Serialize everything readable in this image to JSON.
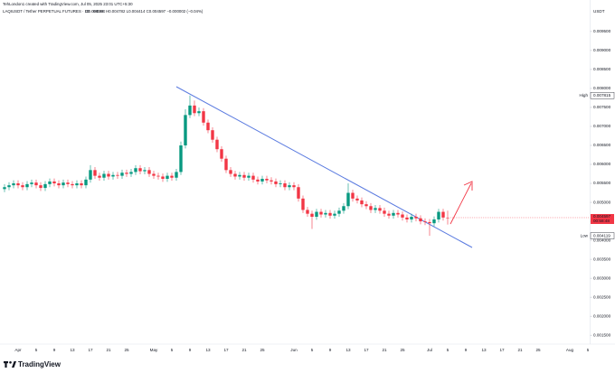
{
  "header": {
    "author_line": "TehLondon1 created with TradingView.com, Jul 05, 2025 23:01 UTC+5:30",
    "symbol_line": "LAQIUSDT / Tether PERPETUAL FUTURES · 1D · MEXC",
    "legend_ohlc": "O0.004598 H0.004782 L0.004414 C0.004597 −0.000002 (−0.04%)",
    "brand": "TradingView"
  },
  "chart_data": {
    "type": "candlestick",
    "y_axis_label": "USDT",
    "high_label": "High",
    "low_label": "Low",
    "countdown": "00:58:48",
    "up_color": "#089981",
    "down_color": "#f23645",
    "grid": false,
    "ylim": [
      0.00129,
      0.01033
    ],
    "yticks": [
      {
        "value": 0.0015,
        "label": "0.001500"
      },
      {
        "value": 0.002,
        "label": "0.002000"
      },
      {
        "value": 0.0025,
        "label": "0.002500"
      },
      {
        "value": 0.003,
        "label": "0.003000"
      },
      {
        "value": 0.0035,
        "label": "0.003500"
      },
      {
        "value": 0.004,
        "label": "0.004000"
      },
      {
        "value": 0.0045,
        "label": "0.004500"
      },
      {
        "value": 0.005,
        "label": "0.005000"
      },
      {
        "value": 0.0055,
        "label": "0.005500"
      },
      {
        "value": 0.006,
        "label": "0.006000"
      },
      {
        "value": 0.0065,
        "label": "0.006500"
      },
      {
        "value": 0.007,
        "label": "0.007000"
      },
      {
        "value": 0.0075,
        "label": "0.007500"
      },
      {
        "value": 0.008,
        "label": "0.008000"
      },
      {
        "value": 0.0085,
        "label": "0.008500"
      },
      {
        "value": 0.009,
        "label": "0.009000"
      },
      {
        "value": 0.0095,
        "label": "0.009500"
      }
    ],
    "categories": [
      null,
      null,
      null,
      "Apr",
      null,
      null,
      null,
      "5",
      null,
      null,
      null,
      "9",
      null,
      null,
      null,
      "13",
      null,
      null,
      null,
      "17",
      null,
      null,
      null,
      "21",
      null,
      null,
      null,
      "25",
      null,
      null,
      null,
      null,
      null,
      "May",
      null,
      null,
      null,
      "5",
      null,
      null,
      null,
      "9",
      null,
      null,
      null,
      "13",
      null,
      null,
      null,
      "17",
      null,
      null,
      null,
      "21",
      null,
      null,
      null,
      "25",
      null,
      null,
      null,
      null,
      null,
      null,
      "Jun",
      null,
      null,
      null,
      "5",
      null,
      null,
      null,
      "9",
      null,
      null,
      null,
      "13",
      null,
      null,
      null,
      "17",
      null,
      null,
      null,
      "21",
      null,
      null,
      null,
      "25",
      null,
      null,
      null,
      null,
      null,
      "Jul",
      null,
      null,
      null,
      "5",
      null,
      null,
      null,
      "9",
      null,
      null,
      null,
      "13",
      null,
      null,
      null,
      "17",
      null,
      null,
      null,
      "21",
      null,
      null,
      null,
      "25",
      null,
      null,
      null,
      null,
      null,
      null,
      "Aug",
      null,
      null,
      null,
      "5"
    ],
    "open": [
      0.00535,
      0.0054,
      0.00545,
      0.0055,
      0.00545,
      0.0054,
      0.00548,
      0.00552,
      0.00545,
      0.00538,
      0.00548,
      0.00555,
      0.0055,
      0.00545,
      0.00552,
      0.00548,
      0.00545,
      0.0055,
      0.00545,
      0.0056,
      0.00585,
      0.0057,
      0.00565,
      0.00575,
      0.00568,
      0.00572,
      0.0057,
      0.00578,
      0.00575,
      0.0058,
      0.0059,
      0.00582,
      0.00585,
      0.00575,
      0.0057,
      0.00568,
      0.00562,
      0.0057,
      0.00565,
      0.0058,
      0.0065,
      0.0073,
      0.00755,
      0.00735,
      0.0074,
      0.0071,
      0.0069,
      0.00665,
      0.0064,
      0.00615,
      0.00585,
      0.00575,
      0.00568,
      0.00572,
      0.00565,
      0.0057,
      0.0056,
      0.00555,
      0.00562,
      0.00558,
      0.00555,
      0.00548,
      0.0055,
      0.0054,
      0.00545,
      0.0054,
      0.0051,
      0.0048,
      0.0047,
      0.00462,
      0.00475,
      0.00468,
      0.00472,
      0.00465,
      0.0047,
      0.00478,
      0.0049,
      0.00525,
      0.0051,
      0.00505,
      0.00495,
      0.0049,
      0.0048,
      0.00485,
      0.00478,
      0.0047,
      0.00465,
      0.00472,
      0.00468,
      0.0046,
      0.00455,
      0.00462,
      0.00458,
      0.0045,
      0.00448,
      0.00445,
      0.00455,
      0.00475,
      0.004598,
      null,
      null,
      null,
      null,
      null,
      null,
      null,
      null,
      null,
      null,
      null,
      null,
      null,
      null,
      null,
      null,
      null,
      null,
      null,
      null,
      null,
      null,
      null,
      null,
      null,
      null,
      null,
      null,
      null,
      null,
      null
    ],
    "high": [
      0.00548,
      0.00553,
      0.00558,
      0.00558,
      0.00553,
      0.00556,
      0.0056,
      0.0056,
      0.00553,
      0.00556,
      0.00563,
      0.00563,
      0.00558,
      0.0056,
      0.0056,
      0.00556,
      0.00558,
      0.00558,
      0.00568,
      0.00598,
      0.00593,
      0.00578,
      0.00583,
      0.00583,
      0.0058,
      0.0058,
      0.00586,
      0.00586,
      0.00588,
      0.00598,
      0.00598,
      0.00593,
      0.00593,
      0.00583,
      0.00578,
      0.00576,
      0.00578,
      0.00578,
      0.00588,
      0.0066,
      0.00745,
      0.007815,
      0.00768,
      0.0075,
      0.00748,
      0.00718,
      0.00698,
      0.00673,
      0.00648,
      0.00623,
      0.00593,
      0.00583,
      0.0058,
      0.0058,
      0.00578,
      0.00578,
      0.00568,
      0.0057,
      0.0057,
      0.00566,
      0.00563,
      0.00558,
      0.00558,
      0.00553,
      0.00553,
      0.00548,
      0.00518,
      0.00488,
      0.00478,
      0.00483,
      0.00483,
      0.0048,
      0.0048,
      0.00478,
      0.00486,
      0.00498,
      0.0055,
      0.00533,
      0.00518,
      0.00513,
      0.00503,
      0.00498,
      0.00493,
      0.00493,
      0.00486,
      0.00478,
      0.0048,
      0.0048,
      0.00476,
      0.00468,
      0.0047,
      0.0047,
      0.00466,
      0.00458,
      0.00456,
      0.00463,
      0.00483,
      0.00483,
      0.004782,
      null,
      null,
      null,
      null,
      null,
      null,
      null,
      null,
      null,
      null,
      null,
      null,
      null,
      null,
      null,
      null,
      null,
      null,
      null,
      null,
      null,
      null,
      null,
      null,
      null,
      null,
      null,
      null,
      null,
      null,
      null
    ],
    "low": [
      0.00527,
      0.00532,
      0.00537,
      0.00537,
      0.00532,
      0.00532,
      0.0054,
      0.00537,
      0.0053,
      0.0053,
      0.0054,
      0.00542,
      0.00537,
      0.00537,
      0.0054,
      0.00537,
      0.00537,
      0.00537,
      0.00537,
      0.00552,
      0.00562,
      0.00557,
      0.00557,
      0.0056,
      0.0056,
      0.00562,
      0.00562,
      0.00567,
      0.00567,
      0.00572,
      0.00574,
      0.00574,
      0.00567,
      0.00562,
      0.0056,
      0.00554,
      0.00554,
      0.00557,
      0.00557,
      0.00572,
      0.00642,
      0.00722,
      0.00727,
      0.00727,
      0.00702,
      0.00682,
      0.00657,
      0.00632,
      0.00607,
      0.00577,
      0.00567,
      0.0056,
      0.0056,
      0.00557,
      0.00557,
      0.00552,
      0.00547,
      0.00547,
      0.0055,
      0.00547,
      0.0054,
      0.0054,
      0.00532,
      0.00532,
      0.00532,
      0.00502,
      0.00472,
      0.00462,
      0.0043,
      0.00454,
      0.0046,
      0.0046,
      0.00457,
      0.00457,
      0.00462,
      0.0047,
      0.00482,
      0.00502,
      0.00497,
      0.00487,
      0.00482,
      0.00472,
      0.00472,
      0.0047,
      0.00462,
      0.00457,
      0.00457,
      0.0046,
      0.00452,
      0.00447,
      0.00447,
      0.0045,
      0.00442,
      0.0044,
      0.004119,
      0.00437,
      0.00447,
      0.00452,
      0.004414,
      null,
      null,
      null,
      null,
      null,
      null,
      null,
      null,
      null,
      null,
      null,
      null,
      null,
      null,
      null,
      null,
      null,
      null,
      null,
      null,
      null,
      null,
      null,
      null,
      null,
      null,
      null,
      null,
      null,
      null,
      null
    ],
    "close": [
      0.0054,
      0.00545,
      0.0055,
      0.00545,
      0.0054,
      0.00548,
      0.00552,
      0.00545,
      0.00538,
      0.00548,
      0.00555,
      0.0055,
      0.00545,
      0.00552,
      0.00548,
      0.00545,
      0.0055,
      0.00545,
      0.0056,
      0.00585,
      0.0057,
      0.00565,
      0.00575,
      0.00568,
      0.00572,
      0.0057,
      0.00578,
      0.00575,
      0.0058,
      0.0059,
      0.00582,
      0.00585,
      0.00575,
      0.0057,
      0.00568,
      0.00562,
      0.0057,
      0.00565,
      0.0058,
      0.0065,
      0.0073,
      0.00755,
      0.00735,
      0.0074,
      0.0071,
      0.0069,
      0.00665,
      0.0064,
      0.00615,
      0.00585,
      0.00575,
      0.00568,
      0.00572,
      0.00565,
      0.0057,
      0.0056,
      0.00555,
      0.00562,
      0.00558,
      0.00555,
      0.00548,
      0.0055,
      0.0054,
      0.00545,
      0.0054,
      0.0051,
      0.0048,
      0.0047,
      0.00462,
      0.00475,
      0.00468,
      0.00472,
      0.00465,
      0.0047,
      0.00478,
      0.0049,
      0.00525,
      0.0051,
      0.00505,
      0.00495,
      0.0049,
      0.0048,
      0.00485,
      0.00478,
      0.0047,
      0.00465,
      0.00472,
      0.00468,
      0.0046,
      0.00455,
      0.00462,
      0.00458,
      0.0045,
      0.00448,
      0.00445,
      0.00455,
      0.00475,
      0.0046,
      0.004597,
      null,
      null,
      null,
      null,
      null,
      null,
      null,
      null,
      null,
      null,
      null,
      null,
      null,
      null,
      null,
      null,
      null,
      null,
      null,
      null,
      null,
      null,
      null,
      null,
      null,
      null,
      null,
      null,
      null,
      null,
      null
    ]
  }
}
